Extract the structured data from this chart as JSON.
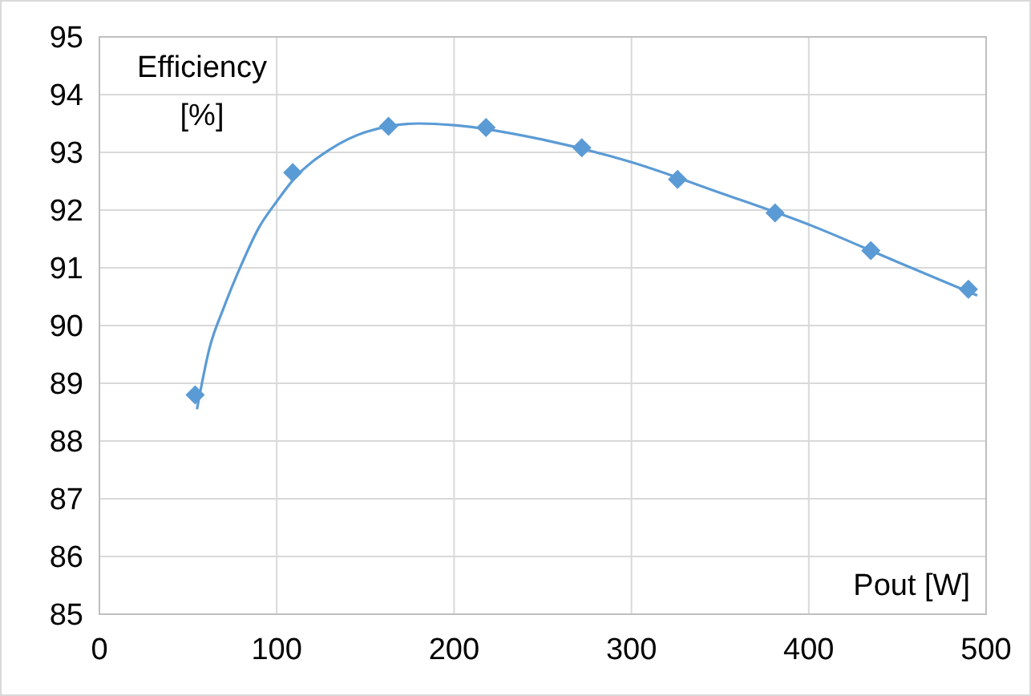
{
  "chart_data": {
    "type": "scatter",
    "xlabel": "Pout [W]",
    "ylabel": "Efficiency [%]",
    "xlim": [
      0,
      500
    ],
    "xticks": [
      0,
      100,
      200,
      300,
      400,
      500
    ],
    "ylim": [
      85,
      95
    ],
    "yticks": [
      85,
      86,
      87,
      88,
      89,
      90,
      91,
      92,
      93,
      94,
      95
    ],
    "grid": true,
    "series": [
      {
        "marker": "diamond",
        "color": "#5b9bd5",
        "x": [
          54,
          109,
          163,
          218,
          272,
          326,
          381,
          435,
          490
        ],
        "values": [
          88.8,
          92.65,
          93.45,
          93.43,
          93.08,
          92.53,
          91.95,
          91.3,
          90.63
        ]
      },
      {
        "type": "line",
        "marker": "none",
        "color": "#5b9bd5",
        "line_style": "solid",
        "x": [
          55,
          62,
          70,
          80,
          90,
          100,
          110,
          130,
          150,
          180,
          200,
          250,
          300,
          350,
          400,
          450,
          495
        ],
        "values": [
          88.55,
          89.6,
          90.3,
          91.05,
          91.7,
          92.15,
          92.55,
          93.05,
          93.35,
          93.5,
          93.47,
          93.22,
          92.83,
          92.3,
          91.75,
          91.1,
          90.52
        ]
      }
    ]
  }
}
